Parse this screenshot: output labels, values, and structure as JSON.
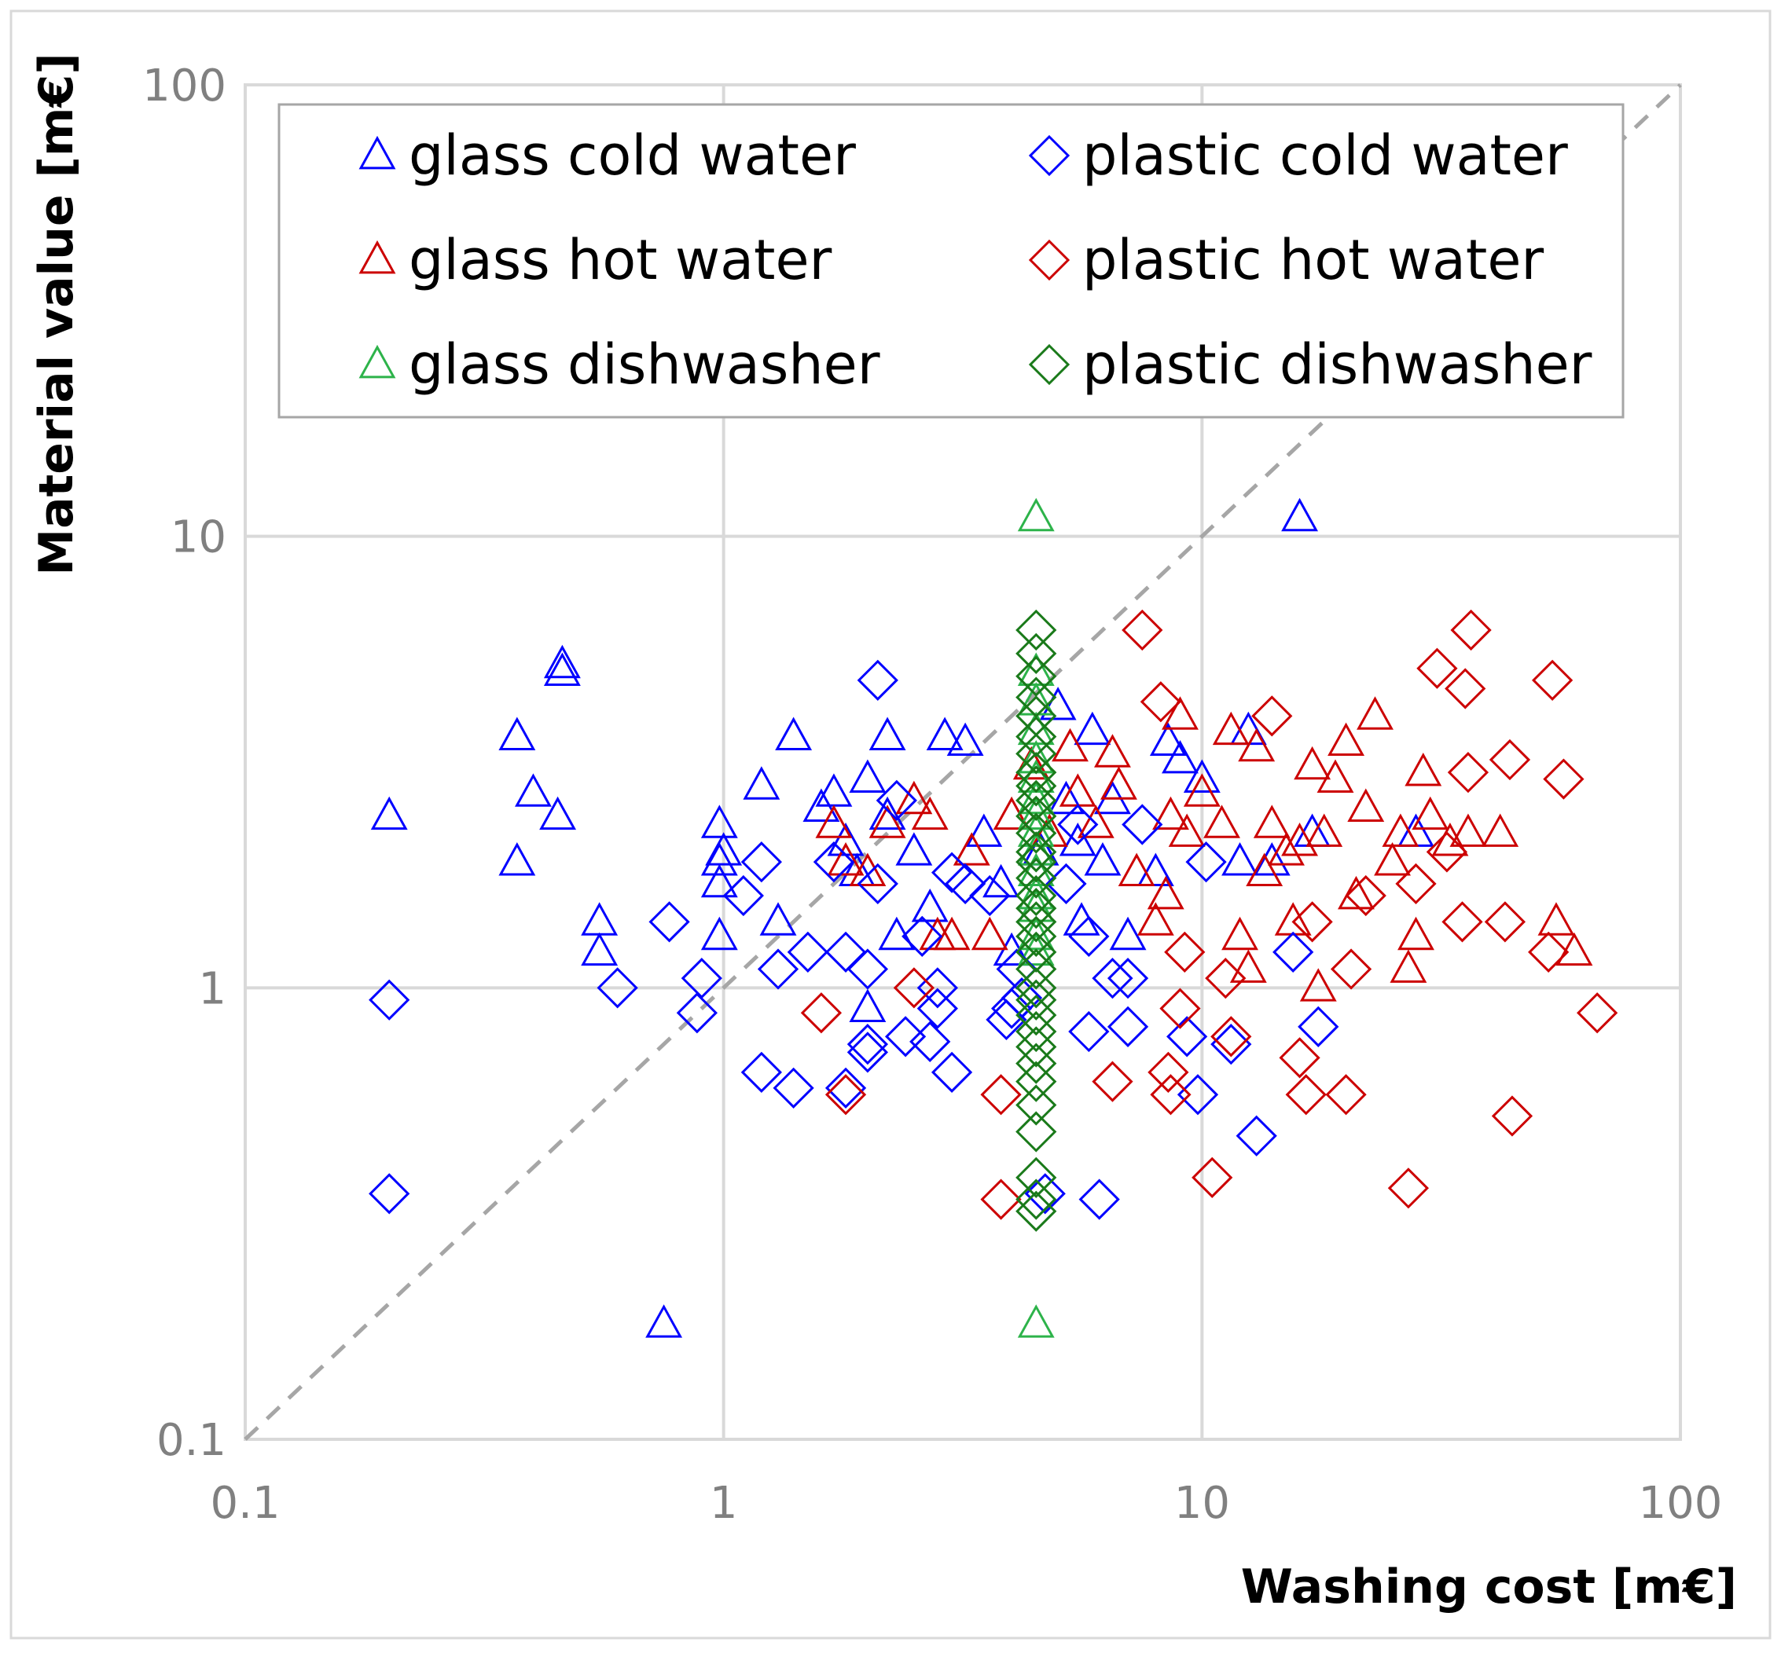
{
  "chart_data": {
    "type": "scatter",
    "title": "",
    "xlabel": "Washing cost [m€]",
    "ylabel": "Material value [m€]",
    "xscale": "log",
    "yscale": "log",
    "xlim": [
      0.1,
      100
    ],
    "ylim": [
      0.1,
      100
    ],
    "grid": true,
    "x_ticks": [
      "0.1",
      "1",
      "10",
      "100"
    ],
    "y_ticks": [
      "0.1",
      "1",
      "10",
      "100"
    ],
    "legend_position": "top",
    "reference_line": {
      "name": "y = x",
      "style": "dashed",
      "color": "#a6a6a6"
    },
    "series": [
      {
        "name": "glass cold water",
        "marker": "triangle",
        "color": "#0000ff",
        "points": [
          [
            0.2,
            2.4
          ],
          [
            0.37,
            3.6
          ],
          [
            0.37,
            1.9
          ],
          [
            0.4,
            2.7
          ],
          [
            0.45,
            2.4
          ],
          [
            0.46,
            5.2
          ],
          [
            0.46,
            5.0
          ],
          [
            0.55,
            1.4
          ],
          [
            0.55,
            1.2
          ],
          [
            0.75,
            0.18
          ],
          [
            0.98,
            2.3
          ],
          [
            0.98,
            1.9
          ],
          [
            0.98,
            1.7
          ],
          [
            0.98,
            1.3
          ],
          [
            1.0,
            2.0
          ],
          [
            1.2,
            2.8
          ],
          [
            1.3,
            1.4
          ],
          [
            1.4,
            3.6
          ],
          [
            1.6,
            2.5
          ],
          [
            1.7,
            2.7
          ],
          [
            1.8,
            2.1
          ],
          [
            1.9,
            1.8
          ],
          [
            2.0,
            2.9
          ],
          [
            2.0,
            0.9
          ],
          [
            2.2,
            3.6
          ],
          [
            2.2,
            2.4
          ],
          [
            2.3,
            1.3
          ],
          [
            2.5,
            2.0
          ],
          [
            2.7,
            1.5
          ],
          [
            2.9,
            3.6
          ],
          [
            3.2,
            3.5
          ],
          [
            3.5,
            2.2
          ],
          [
            3.8,
            1.7
          ],
          [
            4.0,
            1.2
          ],
          [
            4.6,
            2.0
          ],
          [
            5.0,
            4.2
          ],
          [
            5.2,
            2.6
          ],
          [
            5.5,
            2.1
          ],
          [
            5.6,
            1.4
          ],
          [
            5.9,
            3.7
          ],
          [
            6.2,
            1.9
          ],
          [
            6.5,
            2.6
          ],
          [
            7.0,
            1.3
          ],
          [
            8.0,
            1.8
          ],
          [
            8.5,
            3.5
          ],
          [
            9.0,
            3.2
          ],
          [
            10.0,
            2.9
          ],
          [
            12.0,
            1.9
          ],
          [
            12.5,
            3.7
          ],
          [
            14.0,
            1.9
          ],
          [
            16.0,
            11.0
          ],
          [
            17.0,
            2.2
          ],
          [
            28.0,
            2.2
          ]
        ]
      },
      {
        "name": "glass hot water",
        "marker": "triangle",
        "color": "#cc0000",
        "points": [
          [
            1.7,
            2.3
          ],
          [
            1.8,
            1.9
          ],
          [
            2.0,
            1.8
          ],
          [
            2.2,
            2.3
          ],
          [
            2.5,
            2.6
          ],
          [
            2.7,
            2.4
          ],
          [
            2.8,
            1.3
          ],
          [
            3.0,
            1.3
          ],
          [
            3.3,
            2.0
          ],
          [
            3.6,
            1.3
          ],
          [
            4.0,
            2.4
          ],
          [
            4.4,
            3.1
          ],
          [
            4.8,
            2.2
          ],
          [
            5.3,
            3.4
          ],
          [
            5.5,
            2.7
          ],
          [
            6.0,
            2.3
          ],
          [
            6.5,
            3.3
          ],
          [
            6.7,
            2.8
          ],
          [
            7.3,
            1.8
          ],
          [
            8.0,
            1.4
          ],
          [
            8.4,
            1.6
          ],
          [
            8.6,
            2.4
          ],
          [
            9.0,
            4.0
          ],
          [
            9.3,
            2.2
          ],
          [
            10.0,
            2.7
          ],
          [
            11.0,
            2.3
          ],
          [
            11.5,
            3.7
          ],
          [
            12.0,
            1.3
          ],
          [
            12.5,
            1.1
          ],
          [
            13.0,
            3.4
          ],
          [
            13.5,
            1.8
          ],
          [
            14.0,
            2.3
          ],
          [
            15.0,
            2.0
          ],
          [
            15.5,
            1.4
          ],
          [
            16.0,
            2.1
          ],
          [
            17.0,
            3.1
          ],
          [
            17.5,
            1.0
          ],
          [
            18.0,
            2.2
          ],
          [
            19.0,
            2.9
          ],
          [
            20.0,
            3.5
          ],
          [
            21.0,
            1.6
          ],
          [
            22.0,
            2.5
          ],
          [
            23.0,
            4.0
          ],
          [
            25.0,
            1.9
          ],
          [
            26.0,
            2.2
          ],
          [
            27.0,
            1.1
          ],
          [
            28.0,
            1.3
          ],
          [
            29.0,
            3.0
          ],
          [
            30.0,
            2.4
          ],
          [
            33.0,
            2.1
          ],
          [
            36.0,
            2.2
          ],
          [
            42.0,
            2.2
          ],
          [
            55.0,
            1.4
          ],
          [
            60.0,
            1.2
          ]
        ]
      },
      {
        "name": "glass dishwasher",
        "marker": "triangle",
        "color": "#2db34a",
        "points": [
          [
            4.5,
            11.0
          ],
          [
            4.5,
            0.18
          ],
          [
            4.5,
            5.0
          ],
          [
            4.5,
            4.3
          ],
          [
            4.5,
            3.7
          ],
          [
            4.5,
            3.2
          ],
          [
            4.5,
            2.9
          ],
          [
            4.5,
            2.6
          ],
          [
            4.5,
            2.4
          ],
          [
            4.5,
            2.2
          ],
          [
            4.5,
            2.0
          ],
          [
            4.5,
            1.8
          ],
          [
            4.5,
            1.6
          ],
          [
            4.5,
            1.5
          ],
          [
            4.5,
            1.3
          ],
          [
            4.5,
            1.2
          ]
        ]
      },
      {
        "name": "plastic cold water",
        "marker": "diamond",
        "color": "#0000ff",
        "points": [
          [
            0.2,
            0.94
          ],
          [
            0.2,
            0.35
          ],
          [
            0.6,
            1.0
          ],
          [
            0.77,
            1.4
          ],
          [
            0.88,
            0.88
          ],
          [
            0.9,
            1.05
          ],
          [
            1.1,
            1.6
          ],
          [
            1.2,
            0.65
          ],
          [
            1.2,
            1.9
          ],
          [
            1.3,
            1.1
          ],
          [
            1.4,
            0.6
          ],
          [
            1.5,
            1.2
          ],
          [
            1.7,
            1.9
          ],
          [
            1.8,
            0.6
          ],
          [
            1.8,
            1.2
          ],
          [
            2.0,
            1.1
          ],
          [
            2.0,
            0.75
          ],
          [
            2.0,
            0.72
          ],
          [
            2.1,
            4.8
          ],
          [
            2.1,
            1.7
          ],
          [
            2.3,
            2.6
          ],
          [
            2.4,
            0.78
          ],
          [
            2.6,
            1.3
          ],
          [
            2.7,
            0.76
          ],
          [
            2.8,
            0.9
          ],
          [
            2.8,
            1.0
          ],
          [
            3.0,
            1.8
          ],
          [
            3.0,
            0.65
          ],
          [
            3.2,
            1.7
          ],
          [
            3.6,
            1.6
          ],
          [
            3.9,
            0.85
          ],
          [
            4.0,
            0.9
          ],
          [
            4.1,
            1.1
          ],
          [
            4.2,
            0.95
          ],
          [
            4.7,
            0.35
          ],
          [
            5.2,
            1.7
          ],
          [
            5.5,
            2.3
          ],
          [
            5.8,
            1.3
          ],
          [
            5.8,
            0.8
          ],
          [
            6.1,
            0.34
          ],
          [
            6.5,
            1.05
          ],
          [
            7.0,
            1.05
          ],
          [
            7.0,
            0.82
          ],
          [
            7.5,
            2.3
          ],
          [
            9.3,
            0.78
          ],
          [
            9.8,
            0.58
          ],
          [
            10.2,
            1.9
          ],
          [
            11.5,
            0.75
          ],
          [
            13.0,
            0.47
          ],
          [
            15.5,
            1.2
          ],
          [
            17.5,
            0.82
          ]
        ]
      },
      {
        "name": "plastic hot water",
        "marker": "diamond",
        "color": "#cc0000",
        "points": [
          [
            1.6,
            0.88
          ],
          [
            1.8,
            0.58
          ],
          [
            2.5,
            1.0
          ],
          [
            3.8,
            0.58
          ],
          [
            3.8,
            0.34
          ],
          [
            6.5,
            0.62
          ],
          [
            7.5,
            6.2
          ],
          [
            8.2,
            4.3
          ],
          [
            8.5,
            0.65
          ],
          [
            8.6,
            0.58
          ],
          [
            9.0,
            0.9
          ],
          [
            9.2,
            1.2
          ],
          [
            10.5,
            0.38
          ],
          [
            11.2,
            1.05
          ],
          [
            11.5,
            0.78
          ],
          [
            14.0,
            4.0
          ],
          [
            16.0,
            0.7
          ],
          [
            16.5,
            0.58
          ],
          [
            17.0,
            1.4
          ],
          [
            20.0,
            0.58
          ],
          [
            20.5,
            1.1
          ],
          [
            22.0,
            1.6
          ],
          [
            27.0,
            0.36
          ],
          [
            28.0,
            1.7
          ],
          [
            31.0,
            5.1
          ],
          [
            32.5,
            2.0
          ],
          [
            35.0,
            1.4
          ],
          [
            35.5,
            4.6
          ],
          [
            36.0,
            3.0
          ],
          [
            36.5,
            6.2
          ],
          [
            43.0,
            1.4
          ],
          [
            44.0,
            3.2
          ],
          [
            44.5,
            0.52
          ],
          [
            53.0,
            1.2
          ],
          [
            54.0,
            4.8
          ],
          [
            57.0,
            2.9
          ],
          [
            67.0,
            0.88
          ]
        ]
      },
      {
        "name": "plastic dishwasher",
        "marker": "diamond",
        "color": "#1a7a1a",
        "points": [
          [
            4.5,
            6.2
          ],
          [
            4.5,
            5.5
          ],
          [
            4.5,
            4.9
          ],
          [
            4.5,
            4.4
          ],
          [
            4.5,
            4.0
          ],
          [
            4.5,
            3.6
          ],
          [
            4.5,
            3.3
          ],
          [
            4.5,
            3.0
          ],
          [
            4.5,
            2.8
          ],
          [
            4.5,
            2.6
          ],
          [
            4.5,
            2.4
          ],
          [
            4.5,
            2.2
          ],
          [
            4.5,
            2.0
          ],
          [
            4.5,
            1.9
          ],
          [
            4.5,
            1.75
          ],
          [
            4.5,
            1.6
          ],
          [
            4.5,
            1.5
          ],
          [
            4.5,
            1.4
          ],
          [
            4.5,
            1.3
          ],
          [
            4.5,
            1.2
          ],
          [
            4.5,
            1.1
          ],
          [
            4.5,
            1.0
          ],
          [
            4.5,
            0.94
          ],
          [
            4.5,
            0.87
          ],
          [
            4.5,
            0.8
          ],
          [
            4.5,
            0.74
          ],
          [
            4.5,
            0.68
          ],
          [
            4.5,
            0.62
          ],
          [
            4.5,
            0.55
          ],
          [
            4.5,
            0.48
          ],
          [
            4.5,
            0.38
          ],
          [
            4.5,
            0.34
          ],
          [
            4.5,
            0.32
          ]
        ]
      }
    ]
  }
}
